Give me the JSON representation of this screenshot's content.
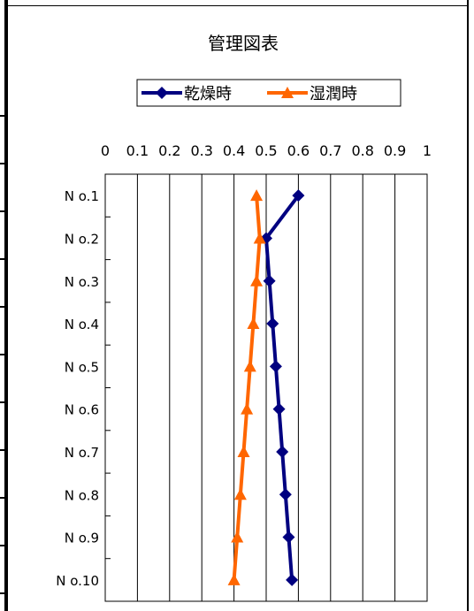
{
  "chart_data": {
    "type": "line",
    "title": "管理図表",
    "orientation": "horizontal-values",
    "xlim": [
      0,
      1
    ],
    "x_ticks": [
      "0",
      "0.1",
      "0.2",
      "0.3",
      "0.4",
      "0.5",
      "0.6",
      "0.7",
      "0.8",
      "0.9",
      "1"
    ],
    "x_tick_values": [
      0,
      0.1,
      0.2,
      0.3,
      0.4,
      0.5,
      0.6,
      0.7,
      0.8,
      0.9,
      1.0
    ],
    "categories": [
      "N o.1",
      "N o.2",
      "N o.3",
      "N o.4",
      "N o.5",
      "N o.6",
      "N o.7",
      "N o.8",
      "N o.9",
      "N o.10"
    ],
    "series": [
      {
        "name": "乾燥時",
        "color": "#000080",
        "marker": "diamond",
        "values": [
          0.6,
          0.5,
          0.51,
          0.52,
          0.53,
          0.54,
          0.55,
          0.56,
          0.57,
          0.58
        ]
      },
      {
        "name": "湿潤時",
        "color": "#FF6600",
        "marker": "triangle",
        "values": [
          0.47,
          0.48,
          0.47,
          0.46,
          0.45,
          0.44,
          0.43,
          0.42,
          0.41,
          0.4
        ]
      }
    ],
    "grid": true,
    "legend": "top-center"
  }
}
